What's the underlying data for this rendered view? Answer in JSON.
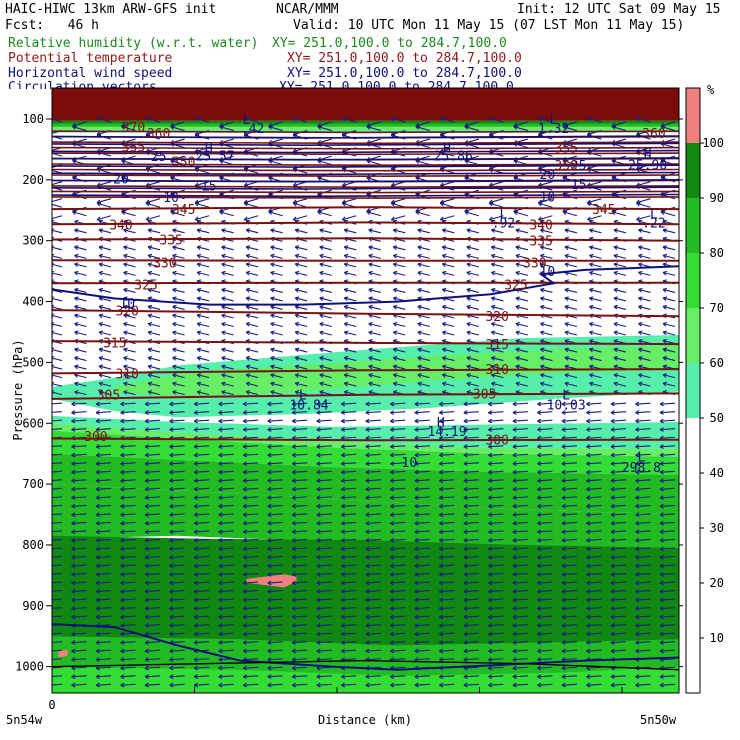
{
  "header": {
    "model": "HAIC-HIWC 13km ARW-GFS init",
    "org": "NCAR/MMM",
    "init": "Init: 12 UTC Sat 09 May 15",
    "fcst": "Fcst:   46 h",
    "valid": "Valid: 10 UTC Mon 11 May 15 (07 LST Mon 11 May 15)",
    "fields": [
      {
        "name": "Relative humidity (w.r.t. water)",
        "xy": "XY= 251.0,100.0 to 284.7,100.0",
        "color": "#1a8a1a"
      },
      {
        "name": "Potential temperature",
        "xy": "XY= 251.0,100.0 to 284.7,100.0",
        "color": "#8b1a1a"
      },
      {
        "name": "Horizontal wind speed",
        "xy": "XY= 251.0,100.0 to 284.7,100.0",
        "color": "#10107a"
      },
      {
        "name": "Circulation vectors",
        "xy": "XY= 251.0,100.0 to 284.7,100.0",
        "color": "#10107a"
      }
    ]
  },
  "chart_data": {
    "type": "heatmap",
    "title": "HAIC-HIWC 13km ARW-GFS init",
    "xlabel": "Distance (km)",
    "ylabel": "Pressure (hPa)",
    "x_tick_labels": [
      "0"
    ],
    "x_end_labels": [
      "5n54w",
      "5n50w"
    ],
    "y_ticks": [
      100,
      200,
      300,
      400,
      500,
      600,
      700,
      800,
      900,
      1000
    ],
    "ylim": [
      1050,
      50
    ],
    "colorbar": {
      "unit": "%",
      "ticks": [
        10,
        20,
        30,
        40,
        50,
        60,
        70,
        80,
        90,
        100
      ],
      "levels": [
        {
          "from": 0,
          "to": 50,
          "color": "#ffffff"
        },
        {
          "from": 50,
          "to": 60,
          "color": "#55eeaa"
        },
        {
          "from": 60,
          "to": 70,
          "color": "#66ee66"
        },
        {
          "from": 70,
          "to": 80,
          "color": "#33dd33"
        },
        {
          "from": 80,
          "to": 90,
          "color": "#22bb22"
        },
        {
          "from": 90,
          "to": 100,
          "color": "#118811"
        },
        {
          "from": 100,
          "to": 110,
          "color": "#f08080"
        }
      ]
    },
    "theta_labels": [
      {
        "text": "345",
        "p": 248,
        "x": 0.21
      },
      {
        "text": "345",
        "p": 248,
        "x": 0.88
      },
      {
        "text": "340",
        "p": 273,
        "x": 0.11
      },
      {
        "text": "340",
        "p": 273,
        "x": 0.78
      },
      {
        "text": "335",
        "p": 298,
        "x": 0.19
      },
      {
        "text": "335",
        "p": 300,
        "x": 0.78
      },
      {
        "text": "330",
        "p": 336,
        "x": 0.18
      },
      {
        "text": "330",
        "p": 336,
        "x": 0.77
      },
      {
        "text": "325",
        "p": 372,
        "x": 0.15
      },
      {
        "text": "325",
        "p": 372,
        "x": 0.74
      },
      {
        "text": "320",
        "p": 415,
        "x": 0.12
      },
      {
        "text": "320",
        "p": 424,
        "x": 0.71
      },
      {
        "text": "315",
        "p": 467,
        "x": 0.1
      },
      {
        "text": "315",
        "p": 470,
        "x": 0.71
      },
      {
        "text": "310",
        "p": 518,
        "x": 0.12
      },
      {
        "text": "310",
        "p": 511,
        "x": 0.71
      },
      {
        "text": "305",
        "p": 553,
        "x": 0.09
      },
      {
        "text": "305",
        "p": 551,
        "x": 0.69
      },
      {
        "text": "300",
        "p": 621,
        "x": 0.07
      },
      {
        "text": "300",
        "p": 627,
        "x": 0.71
      }
    ],
    "theta_upper_labels": [
      "370",
      "360",
      "355",
      "350",
      "360",
      "355",
      "350"
    ],
    "wind_labels": [
      {
        "text": "10",
        "p": 402,
        "x": 0.12
      },
      {
        "text": "10",
        "p": 350,
        "x": 0.79
      },
      {
        "text": "10",
        "p": 228,
        "x": 0.19
      },
      {
        "text": "10",
        "p": 227,
        "x": 0.79
      },
      {
        "text": "15",
        "p": 209,
        "x": 0.25
      },
      {
        "text": "15",
        "p": 207,
        "x": 0.84
      },
      {
        "text": "20",
        "p": 198,
        "x": 0.11
      },
      {
        "text": "20",
        "p": 190,
        "x": 0.79
      },
      {
        "text": "25",
        "p": 161,
        "x": 0.17
      },
      {
        "text": "25",
        "p": 176,
        "x": 0.84
      },
      {
        "text": "10",
        "p": 664,
        "x": 0.57
      }
    ],
    "hl_markers": [
      {
        "text": "L",
        "p": 100,
        "x": 0.31
      },
      {
        "text": "L",
        "p": 100,
        "x": 0.8
      },
      {
        "text": "H",
        "p": 147,
        "x": 0.25
      },
      {
        "text": "H",
        "p": 147,
        "x": 0.63
      },
      {
        "text": "H",
        "p": 155,
        "x": 0.95
      },
      {
        "text": "L",
        "p": 255,
        "x": 0.72
      },
      {
        "text": "L",
        "p": 255,
        "x": 0.96
      },
      {
        "text": "L",
        "p": 553,
        "x": 0.4
      },
      {
        "text": "L",
        "p": 553,
        "x": 0.82
      },
      {
        "text": "H",
        "p": 598,
        "x": 0.62
      },
      {
        "text": "L",
        "p": 655,
        "x": 0.94
      }
    ],
    "hl_values": [
      {
        "text": ".42",
        "p": 115,
        "x": 0.32
      },
      {
        "text": "1.32",
        "p": 115,
        "x": 0.8
      },
      {
        "text": "25.57",
        "p": 160,
        "x": 0.26
      },
      {
        "text": "25.86",
        "p": 160,
        "x": 0.64
      },
      {
        "text": "25.90",
        "p": 175,
        "x": 0.95
      },
      {
        "text": ".92",
        "p": 270,
        "x": 0.72
      },
      {
        "text": ".22",
        "p": 270,
        "x": 0.96
      },
      {
        "text": "10.84",
        "p": 569,
        "x": 0.41
      },
      {
        "text": "10.03",
        "p": 569,
        "x": 0.82
      },
      {
        "text": "14.19",
        "p": 613,
        "x": 0.63
      },
      {
        "text": "298.8",
        "p": 672,
        "x": 0.94
      }
    ]
  }
}
